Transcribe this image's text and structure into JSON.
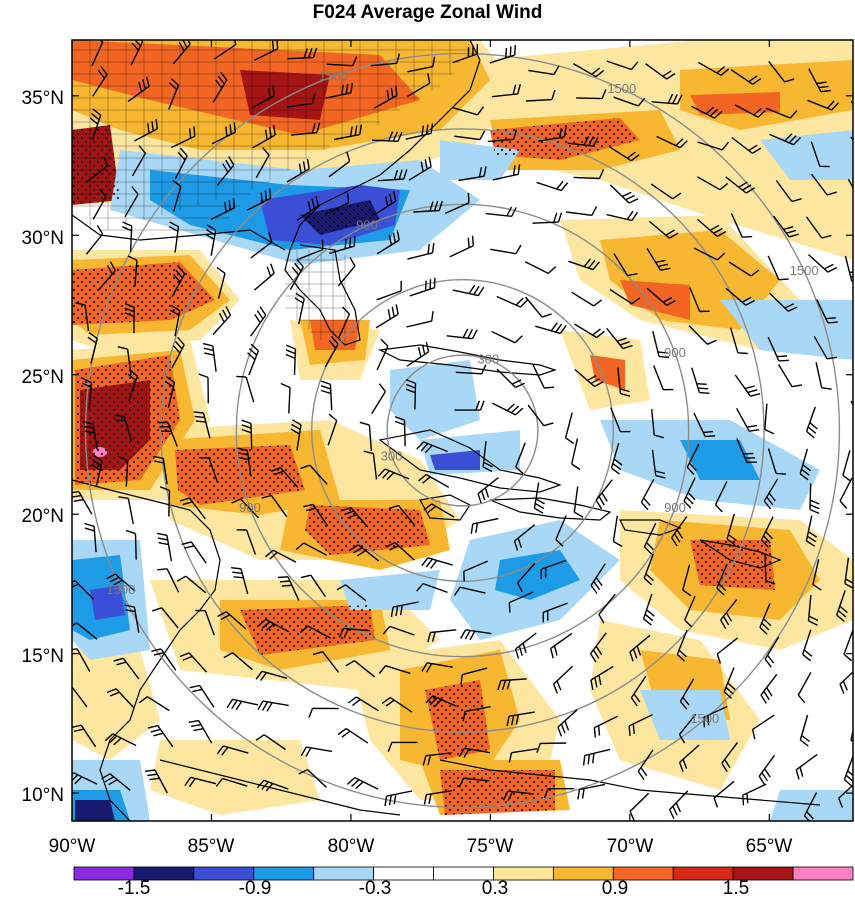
{
  "title": "F024 Average Zonal Wind",
  "map": {
    "lon_range": [
      -90,
      -62
    ],
    "lat_range": [
      9,
      37
    ],
    "storm_center": {
      "lon": -76,
      "lat": 23
    },
    "lon_ticks": [
      {
        "lon": -90,
        "label": "90°W"
      },
      {
        "lon": -85,
        "label": "85°W"
      },
      {
        "lon": -80,
        "label": "80°W"
      },
      {
        "lon": -75,
        "label": "75°W"
      },
      {
        "lon": -70,
        "label": "70°W"
      },
      {
        "lon": -65,
        "label": "65°W"
      }
    ],
    "lat_ticks": [
      {
        "lat": 35,
        "label": "35°N"
      },
      {
        "lat": 30,
        "label": "30°N"
      },
      {
        "lat": 25,
        "label": "25°N"
      },
      {
        "lat": 20,
        "label": "20°N"
      },
      {
        "lat": 15,
        "label": "15°N"
      },
      {
        "lat": 10,
        "label": "10°N"
      }
    ],
    "range_rings": [
      {
        "radius_km": 300,
        "labels": [
          "300",
          "300"
        ]
      },
      {
        "radius_km": 600,
        "labels": []
      },
      {
        "radius_km": 900,
        "labels": [
          "900",
          "900",
          "900",
          "900"
        ]
      },
      {
        "radius_km": 1200,
        "labels": []
      },
      {
        "radius_km": 1500,
        "labels": [
          "1500",
          "1500",
          "1500",
          "1500",
          "1500"
        ]
      }
    ],
    "ring_color": "#8c8c8c",
    "coast_color": "#000000"
  },
  "colorbar": {
    "colors": [
      "#8a2be2",
      "#191970",
      "#3a4fd6",
      "#1e9be6",
      "#a8d8f5",
      "#ffffff",
      "#ffffff",
      "#fde59a",
      "#f7b731",
      "#f26522",
      "#d62a16",
      "#a51515",
      "#ff80c0"
    ],
    "labels": [
      "-1.5",
      "-0.9",
      "-0.3",
      "0.3",
      "0.9",
      "1.5"
    ]
  }
}
